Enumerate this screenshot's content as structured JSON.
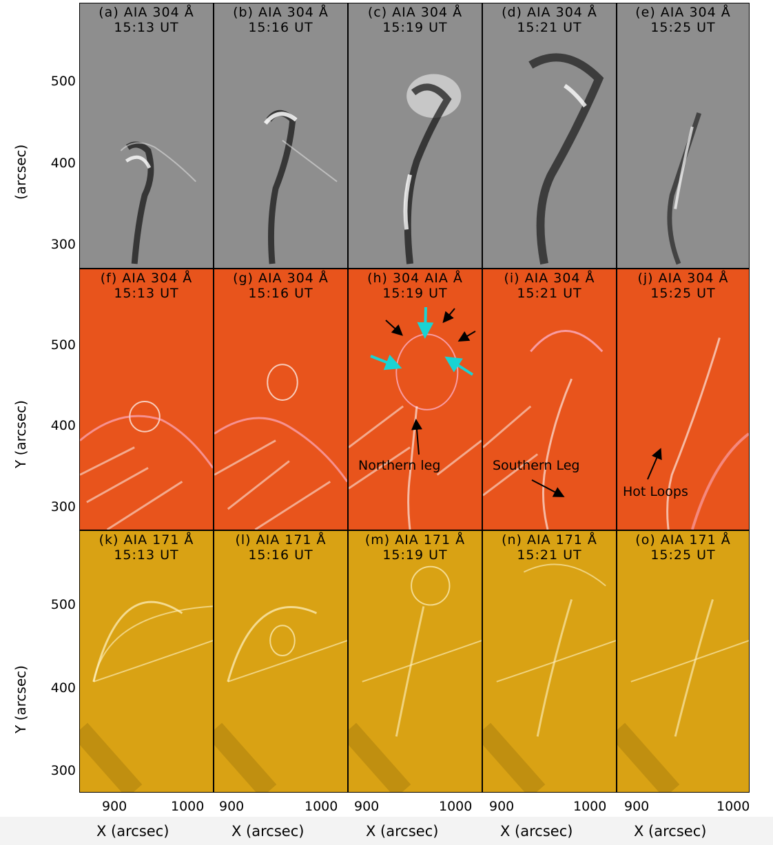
{
  "colors": {
    "gray_panel": "#8e8e8e",
    "orange_panel": "#e8541c",
    "yellow_panel": "#d9a214",
    "cyan_arrow": "#19d3d3",
    "black_arrow": "#000000"
  },
  "rows": [
    {
      "style": "gray",
      "y_axis_label": "(arcsec)",
      "panels": [
        {
          "label": "(a) AIA 304 Å",
          "time": "15:13 UT"
        },
        {
          "label": "(b) AIA 304 Å",
          "time": "15:16 UT"
        },
        {
          "label": "(c) AIA 304 Å",
          "time": "15:19 UT"
        },
        {
          "label": "(d) AIA 304 Å",
          "time": "15:21 UT"
        },
        {
          "label": "(e) AIA 304 Å",
          "time": "15:25 UT"
        }
      ]
    },
    {
      "style": "orange",
      "y_axis_label": "Y (arcsec)",
      "panels": [
        {
          "label": "(f) AIA 304 Å",
          "time": "15:13 UT"
        },
        {
          "label": "(g) AIA 304 Å",
          "time": "15:16 UT"
        },
        {
          "label": "(h) 304 AIA Å",
          "time": "15:19 UT"
        },
        {
          "label": "(i) AIA 304 Å",
          "time": "15:21 UT"
        },
        {
          "label": "(j) AIA 304 Å",
          "time": "15:25 UT"
        }
      ]
    },
    {
      "style": "yellow",
      "y_axis_label": "Y (arcsec)",
      "panels": [
        {
          "label": "(k) AIA 171 Å",
          "time": "15:13 UT"
        },
        {
          "label": "(l) AIA 171 Å",
          "time": "15:16 UT"
        },
        {
          "label": "(m) AIA 171 Å",
          "time": "15:19 UT"
        },
        {
          "label": "(n) AIA 171 Å",
          "time": "15:21 UT"
        },
        {
          "label": "(o) AIA 171 Å",
          "time": "15:25 UT"
        }
      ]
    }
  ],
  "y_ticks": [
    "500",
    "400",
    "300"
  ],
  "x_ticks": [
    "900",
    "1000"
  ],
  "x_axis_label": "X (arcsec)",
  "annotations": {
    "northern_leg": "Northern leg",
    "southern_leg": "Southern Leg",
    "hot_loops": "Hot Loops"
  }
}
